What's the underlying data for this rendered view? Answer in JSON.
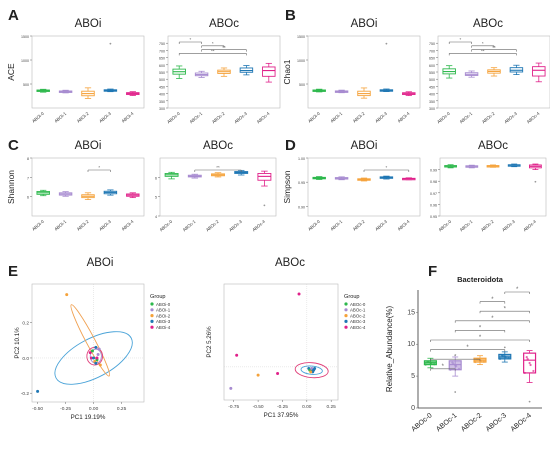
{
  "palette": {
    "ABO-0": "#2db84c",
    "ABO-1": "#a78bd0",
    "ABO-2": "#f5a23a",
    "ABO-3": "#1f77b4",
    "ABO-4": "#e0218a",
    "axis": "#555555",
    "grid": "#e6e6e6",
    "sig": "#666666",
    "ellipse_blue": "#4aa3d8",
    "ellipse_pink": "#e0407a",
    "ellipse_orange": "#f0a050"
  },
  "panels": [
    {
      "letter": "A"
    },
    {
      "letter": "B"
    },
    {
      "letter": "C"
    },
    {
      "letter": "D"
    },
    {
      "letter": "E"
    },
    {
      "letter": "F"
    }
  ],
  "chart_data": [
    {
      "panel": "A",
      "type": "box",
      "title": "ABOi",
      "ylabel": "ACE",
      "categories": [
        "ABOi-0",
        "ABOi-1",
        "ABOi-2",
        "ABOi-3",
        "ABOi-4"
      ],
      "ylim": [
        0,
        1500
      ],
      "yticks": [
        500,
        1000,
        1500
      ],
      "yticklabels": [
        "500",
        "1000",
        "1500"
      ],
      "boxes": [
        {
          "min": 330,
          "q1": 345,
          "median": 360,
          "q3": 375,
          "max": 390
        },
        {
          "min": 315,
          "q1": 330,
          "median": 340,
          "q3": 355,
          "max": 370
        },
        {
          "min": 200,
          "q1": 255,
          "median": 300,
          "q3": 350,
          "max": 420
        },
        {
          "min": 340,
          "q1": 355,
          "median": 365,
          "q3": 380,
          "max": 395
        },
        {
          "min": 260,
          "q1": 280,
          "median": 300,
          "q3": 320,
          "max": 340
        }
      ],
      "outliers": [
        {
          "cat": 3,
          "y": 1340
        }
      ],
      "sig": []
    },
    {
      "panel": "A",
      "type": "box",
      "title": "ABOc",
      "ylabel": "",
      "categories": [
        "ABOc-0",
        "ABOc-1",
        "ABOc-2",
        "ABOc-3",
        "ABOc-4"
      ],
      "ylim": [
        300,
        800
      ],
      "yticks": [
        300,
        350,
        400,
        450,
        500,
        550,
        600,
        650,
        700,
        750
      ],
      "yticklabels": [
        "300",
        "350",
        "400",
        "450",
        "500",
        "550",
        "600",
        "650",
        "700",
        "750"
      ],
      "boxes": [
        {
          "min": 505,
          "q1": 535,
          "median": 552,
          "q3": 570,
          "max": 592
        },
        {
          "min": 512,
          "q1": 524,
          "median": 532,
          "q3": 543,
          "max": 555
        },
        {
          "min": 520,
          "q1": 540,
          "median": 552,
          "q3": 563,
          "max": 578
        },
        {
          "min": 530,
          "q1": 548,
          "median": 560,
          "q3": 578,
          "max": 595
        },
        {
          "min": 480,
          "q1": 520,
          "median": 560,
          "q3": 585,
          "max": 610
        }
      ],
      "outliers": [],
      "sig": [
        {
          "from": 0,
          "to": 1,
          "label": "*"
        },
        {
          "from": 1,
          "to": 2,
          "label": "*"
        },
        {
          "from": 1,
          "to": 3,
          "label": "**"
        },
        {
          "from": 0,
          "to": 3,
          "label": "**"
        }
      ]
    },
    {
      "panel": "B",
      "type": "box",
      "title": "ABOi",
      "ylabel": "Chao1",
      "categories": [
        "ABOi-0",
        "ABOi-1",
        "ABOi-2",
        "ABOi-3",
        "ABOi-4"
      ],
      "ylim": [
        0,
        1500
      ],
      "yticks": [
        500,
        1000,
        1500
      ],
      "yticklabels": [
        "500",
        "1000",
        "1500"
      ],
      "boxes": [
        {
          "min": 335,
          "q1": 348,
          "median": 362,
          "q3": 376,
          "max": 392
        },
        {
          "min": 318,
          "q1": 332,
          "median": 342,
          "q3": 356,
          "max": 372
        },
        {
          "min": 205,
          "q1": 258,
          "median": 300,
          "q3": 350,
          "max": 418
        },
        {
          "min": 342,
          "q1": 356,
          "median": 366,
          "q3": 380,
          "max": 396
        },
        {
          "min": 258,
          "q1": 280,
          "median": 298,
          "q3": 318,
          "max": 338
        }
      ],
      "outliers": [
        {
          "cat": 3,
          "y": 1340
        }
      ],
      "sig": []
    },
    {
      "panel": "B",
      "type": "box",
      "title": "ABOc",
      "ylabel": "",
      "categories": [
        "ABOc-0",
        "ABOc-1",
        "ABOc-2",
        "ABOc-3",
        "ABOc-4"
      ],
      "ylim": [
        300,
        800
      ],
      "yticks": [
        300,
        350,
        400,
        450,
        500,
        550,
        600,
        650,
        700,
        750
      ],
      "yticklabels": [
        "300",
        "350",
        "400",
        "450",
        "500",
        "550",
        "600",
        "650",
        "700",
        "750"
      ],
      "boxes": [
        {
          "min": 508,
          "q1": 537,
          "median": 553,
          "q3": 572,
          "max": 594
        },
        {
          "min": 514,
          "q1": 526,
          "median": 534,
          "q3": 545,
          "max": 557
        },
        {
          "min": 522,
          "q1": 542,
          "median": 554,
          "q3": 565,
          "max": 580
        },
        {
          "min": 532,
          "q1": 550,
          "median": 562,
          "q3": 580,
          "max": 597
        },
        {
          "min": 482,
          "q1": 522,
          "median": 562,
          "q3": 587,
          "max": 612
        }
      ],
      "outliers": [],
      "sig": [
        {
          "from": 0,
          "to": 1,
          "label": "*"
        },
        {
          "from": 1,
          "to": 2,
          "label": "*"
        },
        {
          "from": 1,
          "to": 3,
          "label": "**"
        },
        {
          "from": 0,
          "to": 3,
          "label": "**"
        }
      ]
    },
    {
      "panel": "C",
      "type": "box",
      "title": "ABOi",
      "ylabel": "Shannon",
      "categories": [
        "ABOi-0",
        "ABOi-1",
        "ABOi-2",
        "ABOi-3",
        "ABOi-4"
      ],
      "ylim": [
        5,
        8
      ],
      "yticks": [
        6,
        7,
        8
      ],
      "yticklabels": [
        "6",
        "7",
        "8"
      ],
      "boxes": [
        {
          "min": 6.05,
          "q1": 6.12,
          "median": 6.2,
          "q3": 6.27,
          "max": 6.33
        },
        {
          "min": 6.02,
          "q1": 6.08,
          "median": 6.14,
          "q3": 6.2,
          "max": 6.26
        },
        {
          "min": 5.85,
          "q1": 5.95,
          "median": 6.02,
          "q3": 6.1,
          "max": 6.2
        },
        {
          "min": 6.08,
          "q1": 6.15,
          "median": 6.22,
          "q3": 6.28,
          "max": 6.35
        },
        {
          "min": 5.95,
          "q1": 6.02,
          "median": 6.08,
          "q3": 6.14,
          "max": 6.2
        }
      ],
      "outliers": [],
      "sig": [
        {
          "from": 2,
          "to": 3,
          "label": "*"
        }
      ]
    },
    {
      "panel": "C",
      "type": "box",
      "title": "ABOc",
      "ylabel": "",
      "categories": [
        "ABOc-0",
        "ABOc-1",
        "ABOc-2",
        "ABOc-3",
        "ABOc-4"
      ],
      "ylim": [
        4,
        7
      ],
      "yticks": [
        4,
        5,
        6
      ],
      "yticklabels": [
        "4",
        "5",
        "6"
      ],
      "boxes": [
        {
          "min": 5.92,
          "q1": 6.05,
          "median": 6.13,
          "q3": 6.2,
          "max": 6.26
        },
        {
          "min": 5.96,
          "q1": 6.02,
          "median": 6.06,
          "q3": 6.11,
          "max": 6.16
        },
        {
          "min": 6.02,
          "q1": 6.08,
          "median": 6.13,
          "q3": 6.18,
          "max": 6.24
        },
        {
          "min": 6.12,
          "q1": 6.2,
          "median": 6.25,
          "q3": 6.3,
          "max": 6.36
        },
        {
          "min": 5.55,
          "q1": 5.85,
          "median": 6.05,
          "q3": 6.2,
          "max": 6.32
        }
      ],
      "outliers": [
        {
          "cat": 4,
          "y": 4.55
        }
      ],
      "sig": [
        {
          "from": 1,
          "to": 3,
          "label": "**"
        }
      ]
    },
    {
      "panel": "D",
      "type": "box",
      "title": "ABOi",
      "ylabel": "Simpson",
      "categories": [
        "ABOi-0",
        "ABOi-1",
        "ABOi-2",
        "ABOi-3",
        "ABOi-4"
      ],
      "ylim": [
        0.88,
        1.0
      ],
      "yticks": [
        0.9,
        0.95,
        1.0
      ],
      "yticklabels": [
        "0.90",
        "0.95",
        "1.00"
      ],
      "boxes": [
        {
          "min": 0.9555,
          "q1": 0.957,
          "median": 0.9585,
          "q3": 0.96,
          "max": 0.9615
        },
        {
          "min": 0.955,
          "q1": 0.9565,
          "median": 0.958,
          "q3": 0.9595,
          "max": 0.961
        },
        {
          "min": 0.9525,
          "q1": 0.954,
          "median": 0.9555,
          "q3": 0.957,
          "max": 0.9585
        },
        {
          "min": 0.9565,
          "q1": 0.958,
          "median": 0.9595,
          "q3": 0.961,
          "max": 0.9625
        },
        {
          "min": 0.955,
          "q1": 0.956,
          "median": 0.957,
          "q3": 0.958,
          "max": 0.959
        }
      ],
      "outliers": [],
      "sig": [
        {
          "from": 2,
          "to": 4,
          "label": "*"
        }
      ]
    },
    {
      "panel": "D",
      "type": "box",
      "title": "ABOc",
      "ylabel": "",
      "categories": [
        "ABOc-0",
        "ABOc-1",
        "ABOc-2",
        "ABOc-3",
        "ABOc-4"
      ],
      "ylim": [
        0.95,
        1.0
      ],
      "yticks": [
        0.95,
        0.96,
        0.97,
        0.98,
        0.99
      ],
      "yticklabels": [
        "0.95",
        "0.96",
        "0.97",
        "0.98",
        "0.99"
      ],
      "boxes": [
        {
          "min": 0.9915,
          "q1": 0.9925,
          "median": 0.993,
          "q3": 0.9935,
          "max": 0.9942
        },
        {
          "min": 0.9915,
          "q1": 0.9923,
          "median": 0.9928,
          "q3": 0.9933,
          "max": 0.9938
        },
        {
          "min": 0.992,
          "q1": 0.9926,
          "median": 0.993,
          "q3": 0.9935,
          "max": 0.994
        },
        {
          "min": 0.9925,
          "q1": 0.9932,
          "median": 0.9937,
          "q3": 0.9942,
          "max": 0.9948
        },
        {
          "min": 0.99,
          "q1": 0.9915,
          "median": 0.9928,
          "q3": 0.994,
          "max": 0.9948
        }
      ],
      "outliers": [
        {
          "cat": 4,
          "y": 0.9795
        }
      ],
      "sig": []
    },
    {
      "panel": "E",
      "type": "scatter",
      "title": "ABOi",
      "xlabel": "PC1 19.19%",
      "ylabel": "PC2 10.1%",
      "xlim": [
        -0.55,
        0.45
      ],
      "ylim": [
        -0.25,
        0.42
      ],
      "xticks": [
        -0.5,
        -0.25,
        0.0,
        0.25
      ],
      "xticklabels": [
        "-0.50",
        "-0.25",
        "0.00",
        "0.25"
      ],
      "yticks": [
        -0.2,
        0.0,
        0.2
      ],
      "yticklabels": [
        "-0.2",
        "0.0",
        "0.2"
      ],
      "points": [
        {
          "x": -0.24,
          "y": 0.36,
          "g": 2
        },
        {
          "x": -0.5,
          "y": -0.19,
          "g": 3
        },
        {
          "x": 0.02,
          "y": 0.06,
          "g": 3
        },
        {
          "x": -0.03,
          "y": 0.03,
          "g": 4
        },
        {
          "x": -0.02,
          "y": 0.0,
          "g": 4
        },
        {
          "x": 0.0,
          "y": 0.0,
          "g": 3
        },
        {
          "x": 0.03,
          "y": -0.01,
          "g": 0
        },
        {
          "x": 0.04,
          "y": 0.02,
          "g": 1
        },
        {
          "x": 0.01,
          "y": -0.02,
          "g": 2
        },
        {
          "x": 0.05,
          "y": 0.05,
          "g": 1
        },
        {
          "x": -0.01,
          "y": 0.04,
          "g": 0
        },
        {
          "x": 0.02,
          "y": -0.03,
          "g": 3
        },
        {
          "x": 0.03,
          "y": 0.0,
          "g": 4
        },
        {
          "x": 0.06,
          "y": -0.04,
          "g": 2
        }
      ],
      "ellipses": [
        {
          "cx": 0.0,
          "cy": 0.0,
          "rx": 0.38,
          "ry": 0.11,
          "angle": 28,
          "g": 3
        },
        {
          "cx": -0.03,
          "cy": 0.1,
          "rx": 0.36,
          "ry": 0.025,
          "angle": -62,
          "g": 2
        },
        {
          "cx": 0.01,
          "cy": 0.01,
          "rx": 0.07,
          "ry": 0.05,
          "angle": 0,
          "g": 4
        },
        {
          "cx": 0.02,
          "cy": 0.01,
          "rx": 0.05,
          "ry": 0.04,
          "angle": 0,
          "g": 1
        }
      ],
      "legend": {
        "title": "Group",
        "entries": [
          "ABOi-0",
          "ABOi-1",
          "ABOi-2",
          "ABOi-3",
          "ABOi-4"
        ]
      }
    },
    {
      "panel": "E",
      "type": "scatter",
      "title": "ABOc",
      "xlabel": "PC1 37.95%",
      "ylabel": "PC2 5.26%",
      "xlim": [
        -0.85,
        0.32
      ],
      "ylim": [
        -0.2,
        0.5
      ],
      "xticks": [
        -0.75,
        -0.5,
        -0.25,
        0.0,
        0.25
      ],
      "xticklabels": [
        "-0.75",
        "-0.50",
        "-0.25",
        "0.00",
        "0.25"
      ],
      "yticks": [],
      "yticklabels": [],
      "points": [
        {
          "x": -0.08,
          "y": 0.44,
          "g": 4
        },
        {
          "x": -0.72,
          "y": 0.07,
          "g": 4
        },
        {
          "x": -0.78,
          "y": -0.13,
          "g": 1
        },
        {
          "x": -0.5,
          "y": -0.05,
          "g": 2
        },
        {
          "x": -0.3,
          "y": -0.04,
          "g": 4
        },
        {
          "x": 0.02,
          "y": -0.01,
          "g": 3
        },
        {
          "x": 0.04,
          "y": -0.02,
          "g": 3
        },
        {
          "x": 0.06,
          "y": -0.03,
          "g": 3
        },
        {
          "x": 0.03,
          "y": -0.02,
          "g": 0
        },
        {
          "x": 0.05,
          "y": -0.01,
          "g": 1
        },
        {
          "x": 0.07,
          "y": -0.02,
          "g": 3
        },
        {
          "x": 0.04,
          "y": -0.03,
          "g": 2
        },
        {
          "x": 0.08,
          "y": -0.01,
          "g": 3
        }
      ],
      "ellipses": [
        {
          "cx": 0.05,
          "cy": -0.02,
          "rx": 0.17,
          "ry": 0.045,
          "angle": -5,
          "g": 4
        },
        {
          "cx": 0.05,
          "cy": -0.02,
          "rx": 0.11,
          "ry": 0.025,
          "angle": -5,
          "g": 3
        }
      ],
      "legend": {
        "title": "Group",
        "entries": [
          "ABOc-0",
          "ABOc-1",
          "ABOc-2",
          "ABOc-3",
          "ABOc-4"
        ]
      }
    },
    {
      "panel": "F",
      "type": "box",
      "title": "Bacteroidota",
      "ylabel": "Relative_Abundance(%)",
      "categories": [
        "ABOc-0",
        "ABOc-1",
        "ABOc-2",
        "ABOc-3",
        "ABOc-4"
      ],
      "ylim": [
        0,
        18.5
      ],
      "yticks": [
        0,
        5,
        10,
        15
      ],
      "yticklabels": [
        "0",
        "5",
        "10",
        "15"
      ],
      "boxes": [
        {
          "min": 6.3,
          "q1": 6.8,
          "median": 7.1,
          "q3": 7.4,
          "max": 7.8
        },
        {
          "min": 5.0,
          "q1": 6.0,
          "median": 6.8,
          "q3": 7.4,
          "max": 8.0
        },
        {
          "min": 6.8,
          "q1": 7.2,
          "median": 7.5,
          "q3": 7.8,
          "max": 8.2
        },
        {
          "min": 7.2,
          "q1": 7.7,
          "median": 8.0,
          "q3": 8.4,
          "max": 8.8
        },
        {
          "min": 4.0,
          "q1": 5.5,
          "median": 7.5,
          "q3": 8.6,
          "max": 9.0
        }
      ],
      "outliers": [
        {
          "cat": 1,
          "y": 2.5
        },
        {
          "cat": 3,
          "y": 9.5
        },
        {
          "cat": 4,
          "y": 1.0
        }
      ],
      "sig": [
        {
          "from": 0,
          "to": 1,
          "label": "*"
        },
        {
          "from": 0,
          "to": 2,
          "label": "*"
        },
        {
          "from": 0,
          "to": 3,
          "label": "*"
        },
        {
          "from": 0,
          "to": 4,
          "label": "*"
        },
        {
          "from": 1,
          "to": 3,
          "label": "*"
        },
        {
          "from": 1,
          "to": 4,
          "label": "*"
        },
        {
          "from": 2,
          "to": 4,
          "label": "*"
        },
        {
          "from": 2,
          "to": 3,
          "label": "*"
        },
        {
          "from": 3,
          "to": 4,
          "label": "*"
        }
      ]
    }
  ]
}
